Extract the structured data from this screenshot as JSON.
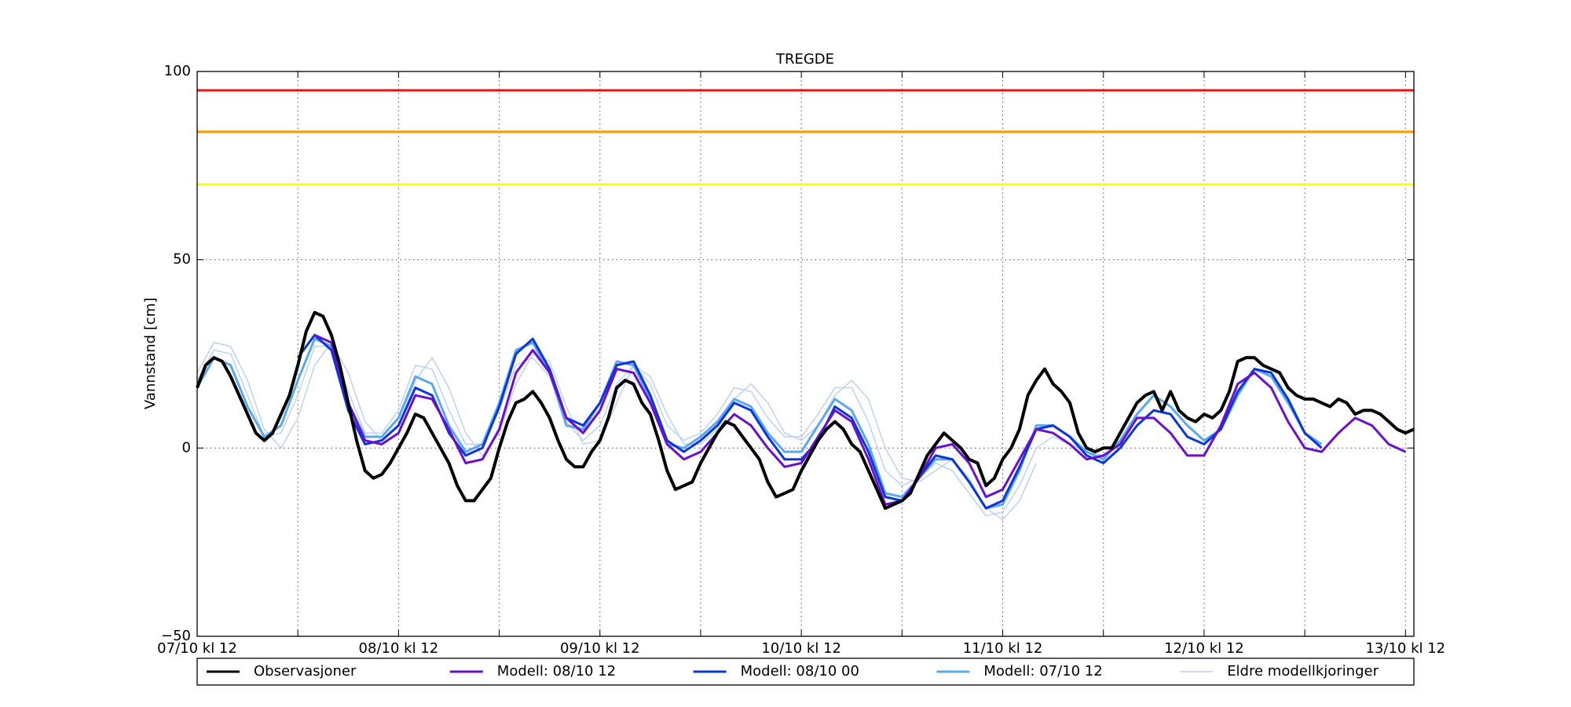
{
  "chart_data": {
    "type": "line",
    "title": "TREGDE",
    "y_label": "Vannstand [cm]",
    "xlim": [
      0,
      145
    ],
    "ylim": [
      -50,
      100
    ],
    "xticks": [
      {
        "value": 0,
        "label": "07/10 kl 12"
      },
      {
        "value": 24,
        "label": "08/10 kl 12"
      },
      {
        "value": 48,
        "label": "09/10 kl 12"
      },
      {
        "value": 72,
        "label": "10/10 kl 12"
      },
      {
        "value": 96,
        "label": "11/10 kl 12"
      },
      {
        "value": 120,
        "label": "12/10 kl 12"
      },
      {
        "value": 144,
        "label": "13/10 kl 12"
      }
    ],
    "xminorticks": [
      12,
      36,
      60,
      84,
      108,
      132
    ],
    "yticks": [
      {
        "value": -50,
        "label": "−50"
      },
      0,
      50,
      100
    ],
    "grid": true,
    "legend": "bottom",
    "hlines": [
      {
        "value": 95,
        "color": "#ee1111"
      },
      {
        "value": 84,
        "color": "#ff9a00"
      },
      {
        "value": 70,
        "color": "#ffff00"
      }
    ],
    "x": [
      0,
      2,
      4,
      6,
      8,
      10,
      12,
      14,
      16,
      18,
      20,
      22,
      24,
      26,
      28,
      30,
      32,
      34,
      36,
      38,
      40,
      42,
      44,
      46,
      48,
      50,
      52,
      54,
      56,
      58,
      60,
      62,
      64,
      66,
      68,
      70,
      72,
      74,
      76,
      78,
      80,
      82,
      84,
      86,
      88,
      90,
      92,
      94,
      96,
      98,
      100,
      102,
      104,
      106,
      108,
      110,
      112,
      114,
      116,
      118,
      120,
      122,
      124,
      126,
      128,
      130,
      132,
      134,
      136,
      138,
      140,
      142,
      144
    ],
    "older_runs": {
      "name": "Eldre modellkjoringer",
      "color": "#b8d0f2",
      "runs": [
        [
          18,
          26,
          25,
          14,
          3,
          4,
          14,
          27,
          27,
          15,
          4,
          4,
          10,
          22,
          21,
          10,
          1,
          1,
          10,
          22,
          24,
          19,
          7,
          2,
          6,
          17,
          22,
          17,
          6,
          2,
          4,
          9,
          16,
          15,
          8,
          3,
          3,
          9,
          16,
          16,
          7,
          -6,
          -10,
          -8,
          -4,
          -6,
          -12,
          -18,
          -17,
          -10,
          0,
          3,
          1,
          -1,
          -2,
          null,
          null,
          null,
          null,
          null,
          null,
          null,
          null,
          null,
          null,
          null,
          null,
          null,
          null,
          null,
          null,
          null,
          null
        ],
        [
          20,
          28,
          27,
          18,
          5,
          0,
          8,
          22,
          28,
          20,
          7,
          2,
          6,
          18,
          24,
          16,
          4,
          -2,
          4,
          17,
          25,
          23,
          11,
          1,
          2,
          12,
          22,
          19,
          9,
          1,
          1,
          5,
          13,
          17,
          12,
          4,
          2,
          6,
          14,
          18,
          13,
          0,
          -8,
          -9,
          -6,
          -3,
          -8,
          -16,
          -19,
          -14,
          -4,
          null,
          null,
          null,
          null,
          null,
          null,
          null,
          null,
          null,
          null,
          null,
          null,
          null,
          null,
          null,
          null,
          null,
          null,
          null,
          null,
          null,
          null
        ]
      ]
    },
    "series": [
      {
        "name": "Observasjoner",
        "color": "#000000",
        "x": [
          0,
          1,
          2,
          3,
          4,
          5,
          6,
          7,
          8,
          9,
          10,
          11,
          12,
          13,
          14,
          15,
          16,
          17,
          18,
          19,
          20,
          21,
          22,
          23,
          24,
          25,
          26,
          27,
          28,
          29,
          30,
          31,
          32,
          33,
          34,
          35,
          36,
          37,
          38,
          39,
          40,
          41,
          42,
          43,
          44,
          45,
          46,
          47,
          48,
          49,
          50,
          51,
          52,
          53,
          54,
          55,
          56,
          57,
          58,
          59,
          60,
          61,
          62,
          63,
          64,
          65,
          66,
          67,
          68,
          69,
          70,
          71,
          72,
          73,
          74,
          75,
          76,
          77,
          78,
          79,
          80,
          81,
          82,
          83,
          84,
          85,
          86,
          87,
          88,
          89,
          90,
          91,
          92,
          93,
          94,
          95,
          96,
          97,
          98,
          99,
          100,
          101,
          102,
          103,
          104,
          105,
          106,
          107,
          108,
          109,
          110,
          111,
          112,
          113,
          114,
          115,
          116,
          117,
          118,
          119,
          120,
          121,
          122,
          123,
          124,
          125,
          126,
          127,
          128,
          129,
          130,
          131,
          132,
          133,
          134,
          135,
          136,
          137,
          138,
          139,
          140,
          141,
          142,
          143,
          144,
          145
        ],
        "values": [
          16,
          22,
          24,
          23,
          19,
          14,
          9,
          4,
          2,
          4,
          9,
          14,
          22,
          31,
          36,
          35,
          30,
          22,
          12,
          2,
          -6,
          -8,
          -7,
          -4,
          0,
          4,
          9,
          8,
          4,
          0,
          -4,
          -10,
          -14,
          -14,
          -11,
          -8,
          0,
          7,
          12,
          13,
          15,
          12,
          8,
          2,
          -3,
          -5,
          -5,
          -1,
          2,
          8,
          16,
          18,
          17,
          12,
          9,
          2,
          -6,
          -11,
          -10,
          -9,
          -4,
          0,
          4,
          7,
          6,
          3,
          0,
          -3,
          -9,
          -13,
          -12,
          -11,
          -6,
          -2,
          2,
          5,
          7,
          5,
          1,
          -1,
          -6,
          -11,
          -16,
          -15,
          -14,
          -12,
          -7,
          -2,
          1,
          4,
          2,
          0,
          -3,
          -4,
          -10,
          -8,
          -3,
          0,
          5,
          14,
          18,
          21,
          17,
          15,
          12,
          4,
          0,
          -1,
          0,
          0,
          4,
          8,
          12,
          14,
          15,
          10,
          15,
          10,
          8,
          7,
          9,
          8,
          10,
          15,
          23,
          24,
          24,
          22,
          21,
          20,
          16,
          14,
          13,
          13,
          12,
          11,
          13,
          12,
          9,
          10,
          10,
          9,
          7,
          5,
          4,
          5
        ]
      },
      {
        "name": "Modell: 08/10 12",
        "color": "#6a0fd0",
        "values": [
          null,
          null,
          null,
          null,
          null,
          null,
          null,
          30,
          28,
          12,
          2,
          1,
          4,
          14,
          13,
          5,
          -4,
          -3,
          5,
          20,
          26,
          20,
          8,
          4,
          10,
          21,
          20,
          12,
          1,
          -3,
          -1,
          4,
          9,
          6,
          0,
          -5,
          -4,
          3,
          10,
          7,
          -3,
          -15,
          -14,
          -8,
          0,
          1,
          -4,
          -13,
          -11,
          -3,
          5,
          4,
          1,
          -3,
          -2,
          1,
          8,
          8,
          4,
          -2,
          -2,
          6,
          17,
          20,
          16,
          7,
          0,
          -1,
          4,
          8,
          6,
          1,
          -1
        ]
      },
      {
        "name": "Modell: 08/10 00",
        "color": "#0c35d8",
        "values": [
          null,
          null,
          null,
          null,
          null,
          null,
          24,
          30,
          26,
          10,
          1,
          2,
          6,
          16,
          14,
          4,
          -2,
          0,
          11,
          25,
          29,
          21,
          8,
          6,
          12,
          22,
          23,
          14,
          2,
          -1,
          2,
          6,
          12,
          10,
          3,
          -3,
          -3,
          2,
          11,
          8,
          -1,
          -13,
          -14,
          -8,
          -2,
          -3,
          -9,
          -16,
          -14,
          -5,
          5,
          6,
          3,
          -2,
          -4,
          0,
          6,
          10,
          9,
          3,
          1,
          5,
          15,
          21,
          20,
          13,
          4,
          0,
          null,
          null,
          null,
          null,
          null
        ]
      },
      {
        "name": "Modell: 07/10 12",
        "color": "#5aa8f2",
        "values": [
          16,
          24,
          22,
          11,
          3,
          6,
          18,
          29,
          27,
          12,
          3,
          3,
          8,
          19,
          17,
          6,
          -1,
          1,
          12,
          26,
          28,
          20,
          6,
          5,
          12,
          23,
          22,
          13,
          1,
          0,
          3,
          7,
          13,
          11,
          4,
          -1,
          -1,
          6,
          13,
          10,
          1,
          -12,
          -13,
          -8,
          -3,
          -3,
          -9,
          -16,
          -15,
          -6,
          6,
          6,
          3,
          -1,
          -3,
          2,
          9,
          14,
          11,
          6,
          2,
          5,
          14,
          21,
          19,
          12,
          4,
          1,
          null,
          null,
          null,
          null,
          null
        ]
      }
    ]
  }
}
